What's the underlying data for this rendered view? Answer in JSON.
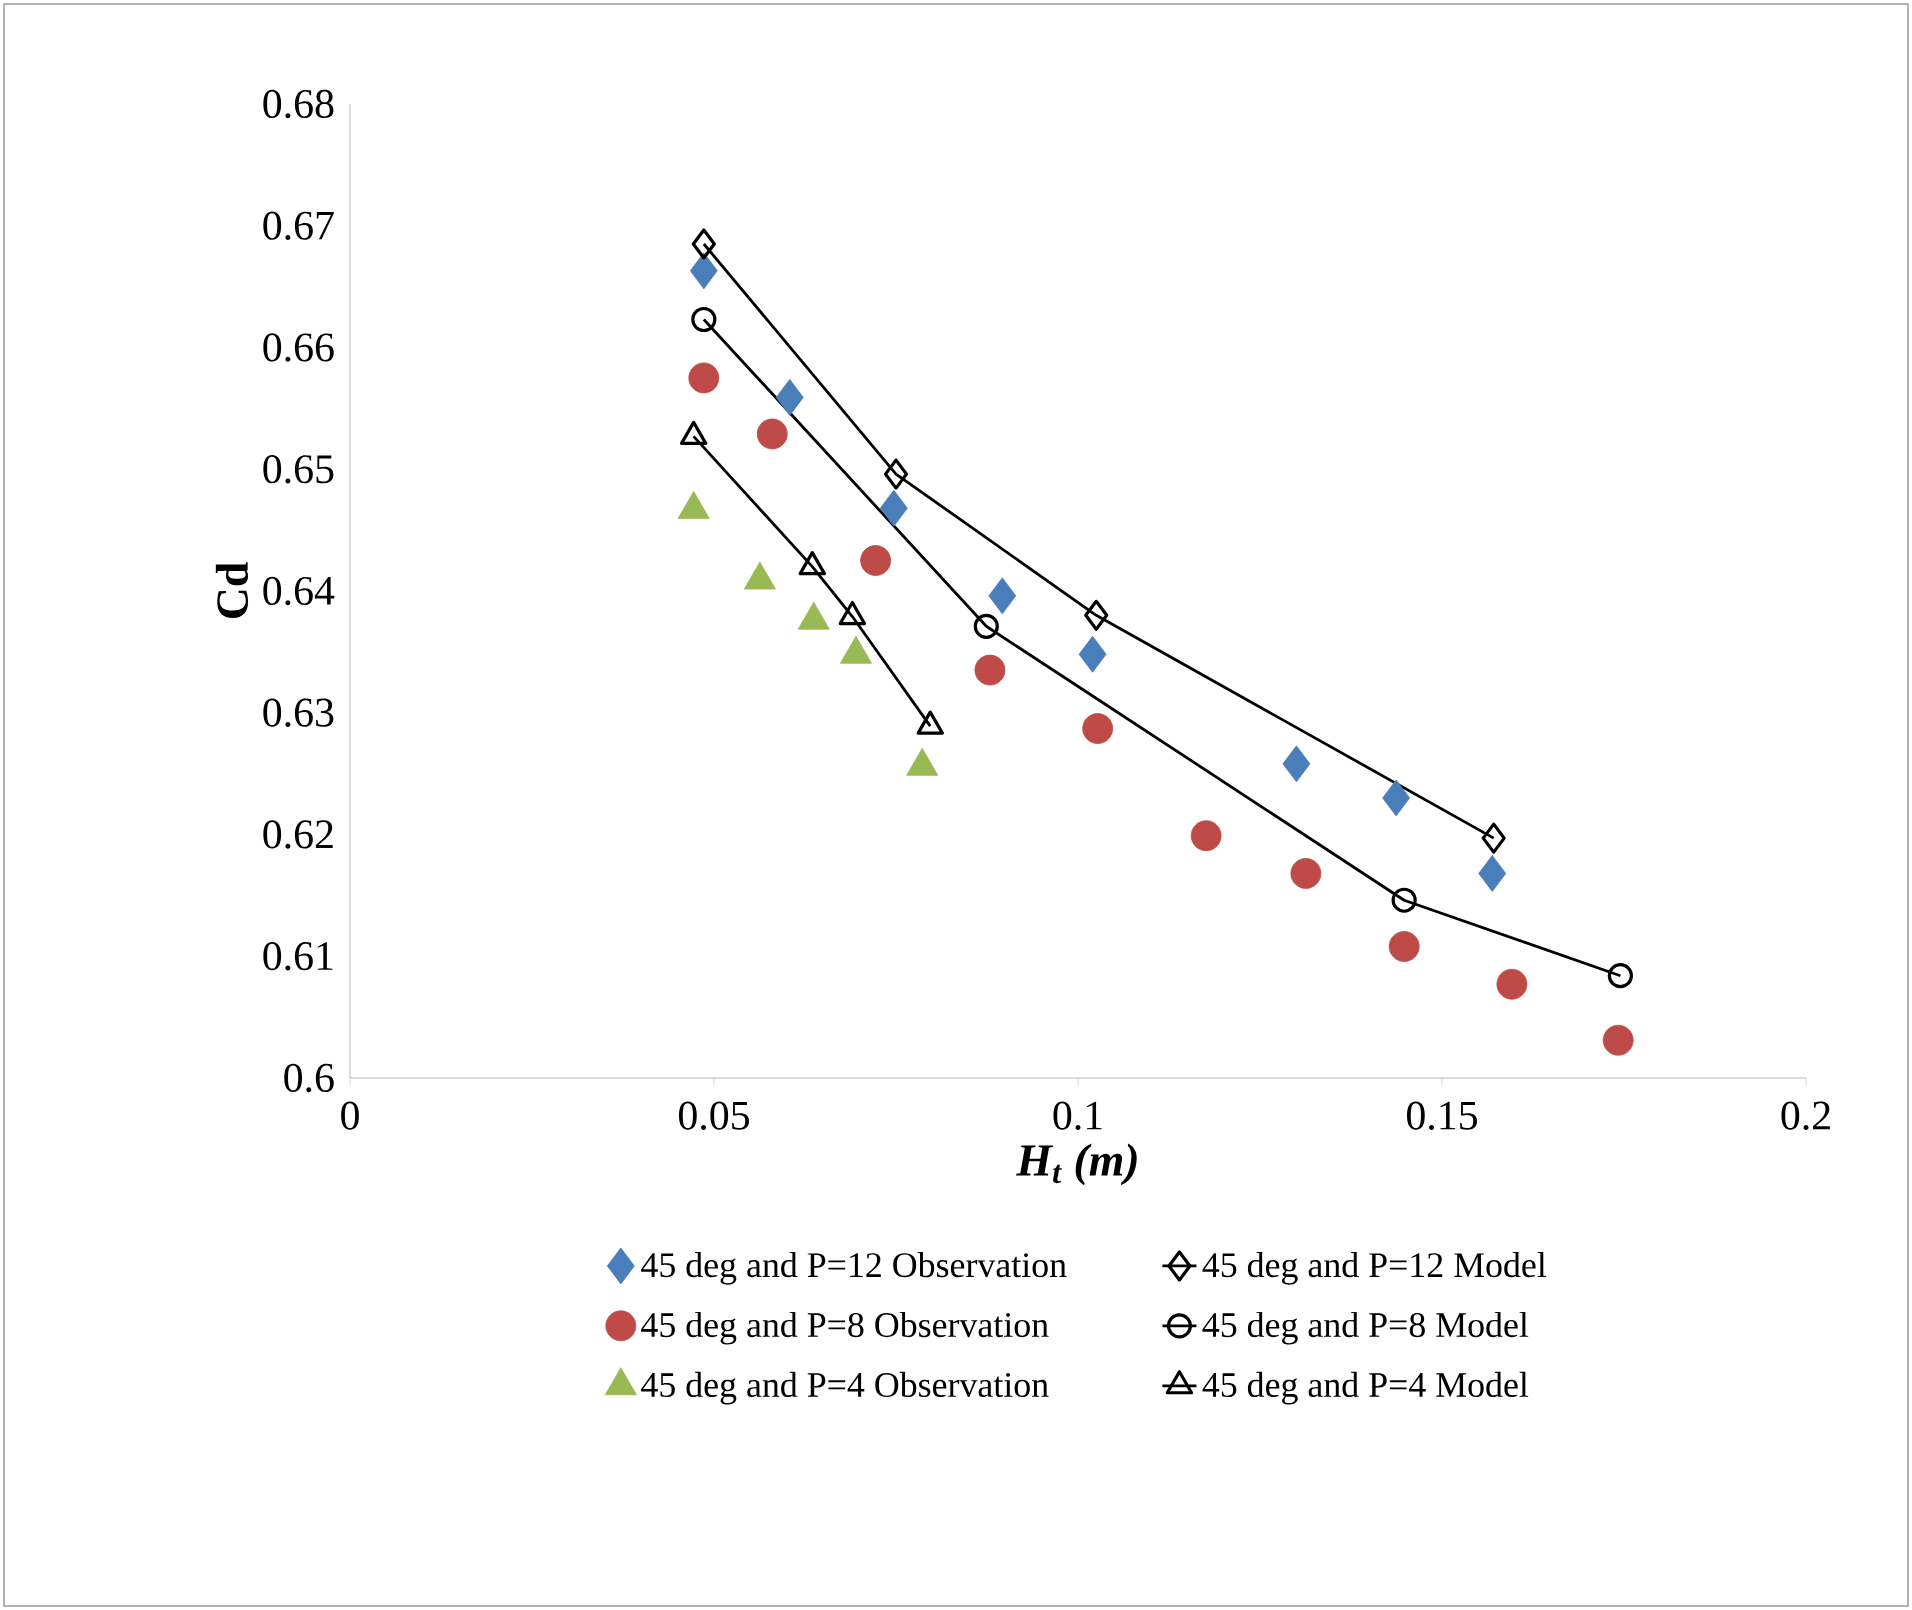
{
  "chart_data": {
    "type": "scatter",
    "xlabel": "H$_{t}$ (m)",
    "ylabel": "Cd",
    "xlim": [
      0,
      0.2
    ],
    "xticks": [
      0,
      0.05,
      0.1,
      0.15,
      0.2
    ],
    "ylim": [
      0.6,
      0.68
    ],
    "yticks": [
      0.6,
      0.61,
      0.62,
      0.63,
      0.64,
      0.65,
      0.66,
      0.67,
      0.68
    ],
    "legend": "bottom",
    "series": [
      {
        "name": "45 deg and P=12 Observation",
        "marker": "diamond",
        "color": "#4a7ebb",
        "x": [
          0.0486,
          0.0604,
          0.0747,
          0.0896,
          0.102,
          0.13,
          0.1437,
          0.1569
        ],
        "values": [
          0.6663,
          0.6559,
          0.6468,
          0.6396,
          0.6348,
          0.6258,
          0.623,
          0.6168
        ]
      },
      {
        "name": "45 deg and P=12 Model",
        "type": "line",
        "marker": "diamond",
        "color": "#000000",
        "x": [
          0.0486,
          0.075,
          0.1025,
          0.1571
        ],
        "values": [
          0.6685,
          0.6496,
          0.638,
          0.6197
        ]
      },
      {
        "name": "45 deg and P=8 Observation",
        "marker": "circle",
        "color": "#be4b48",
        "x": [
          0.0486,
          0.058,
          0.0722,
          0.0879,
          0.1027,
          0.1176,
          0.1313,
          0.1448,
          0.1596,
          0.1742
        ],
        "values": [
          0.6575,
          0.6529,
          0.6425,
          0.6335,
          0.6287,
          0.6199,
          0.6168,
          0.6108,
          0.6077,
          0.6031
        ]
      },
      {
        "name": "45 deg and P=8 Model",
        "type": "line",
        "marker": "circle",
        "color": "#000000",
        "x": [
          0.0486,
          0.0874,
          0.1448,
          0.1745
        ],
        "values": [
          0.6623,
          0.6371,
          0.6146,
          0.6084
        ]
      },
      {
        "name": "45 deg and P=4 Observation",
        "marker": "triangle",
        "color": "#98b954",
        "x": [
          0.0472,
          0.0563,
          0.0637,
          0.0695,
          0.0786
        ],
        "values": [
          0.6467,
          0.6409,
          0.6376,
          0.6348,
          0.6256
        ]
      },
      {
        "name": "45 deg and P=4 Model",
        "type": "line",
        "marker": "triangle",
        "color": "#000000",
        "x": [
          0.0472,
          0.0635,
          0.069,
          0.0797
        ],
        "values": [
          0.6527,
          0.642,
          0.6379,
          0.6289
        ]
      }
    ]
  }
}
